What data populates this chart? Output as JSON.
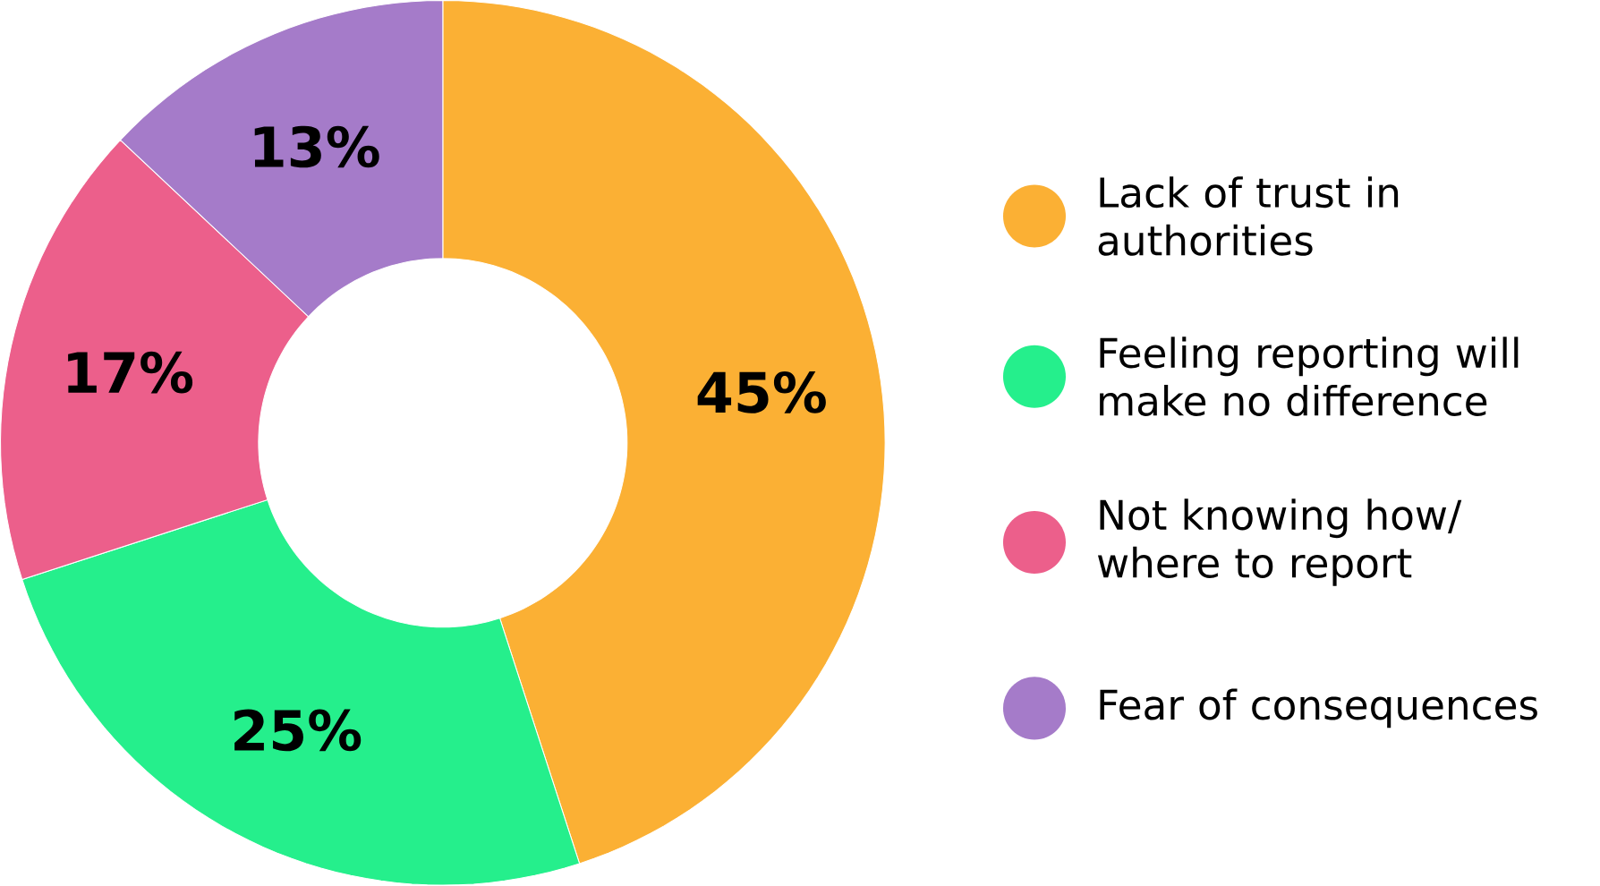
{
  "chart_data": {
    "type": "donut",
    "categories": [
      "Lack of trust in authorities",
      "Feeling reporting will make no difference",
      "Not knowing how/ where to report",
      "Fear of consequences"
    ],
    "values": [
      45,
      25,
      17,
      13
    ],
    "value_labels": [
      "45%",
      "25%",
      "17%",
      "13%"
    ],
    "colors": [
      "#fbb034",
      "#25ef8c",
      "#ec5f8b",
      "#a57bc9"
    ],
    "legend": "right"
  }
}
